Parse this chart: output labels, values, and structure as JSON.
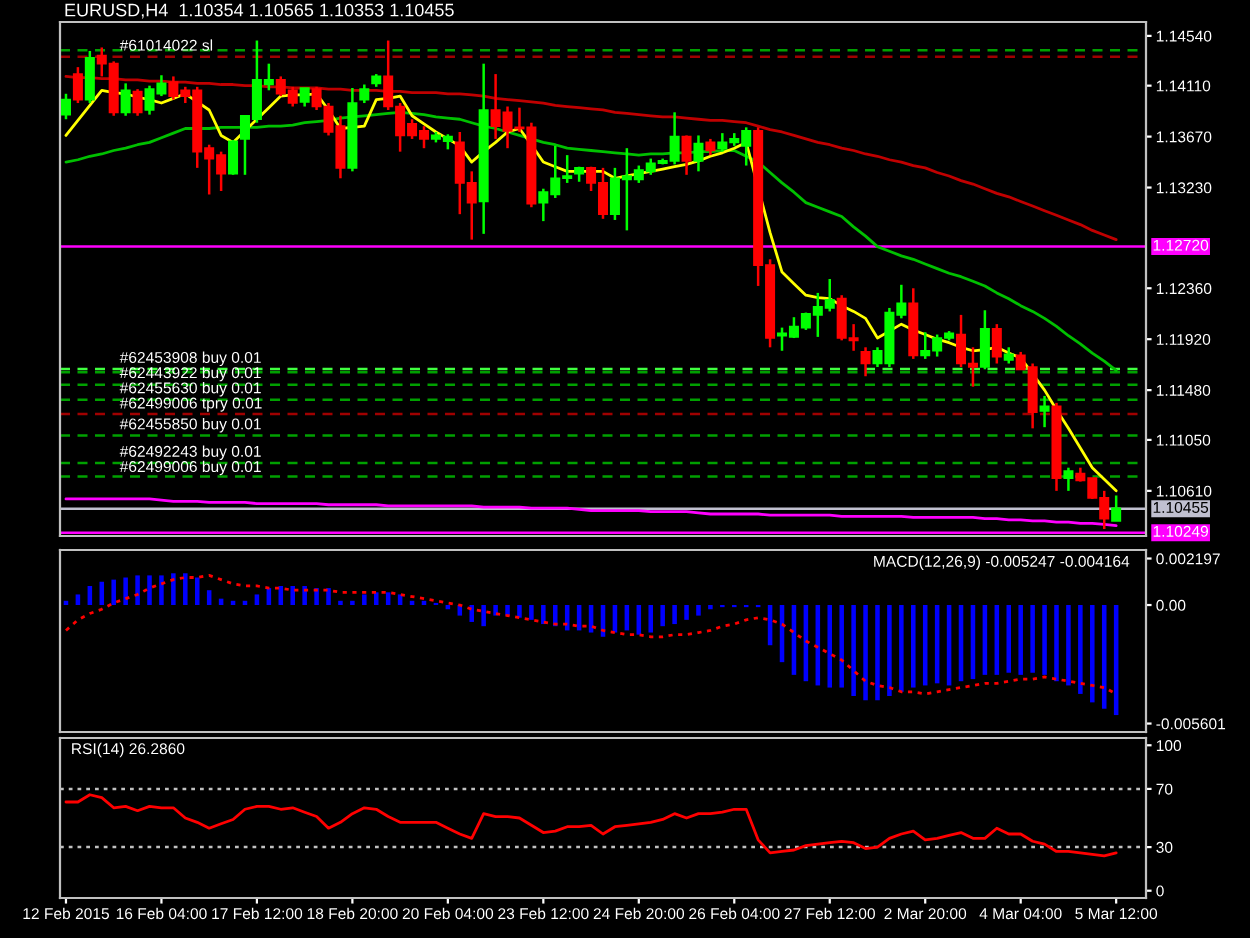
{
  "chart_data": [
    {
      "type": "candlestick",
      "title": "EURUSD,H4  1.10354 1.10565 1.10353 1.10455",
      "categories": [
        null,
        null,
        null,
        null,
        null,
        null,
        null,
        null,
        null,
        null,
        null,
        null,
        null,
        null,
        null,
        null,
        null,
        null,
        null,
        null,
        null,
        null,
        null,
        null,
        null,
        null,
        null,
        null,
        null,
        null,
        null,
        null,
        null,
        null,
        null,
        null,
        null,
        null,
        null,
        null,
        null,
        null,
        null,
        null,
        null,
        null,
        null,
        null,
        null,
        null,
        null,
        null,
        null,
        null,
        null,
        null,
        null,
        null,
        null,
        null,
        null,
        null,
        null,
        null,
        null,
        null,
        null,
        null,
        null,
        null,
        null,
        null,
        null,
        null,
        null,
        null,
        null,
        null,
        null,
        null,
        null,
        null,
        null,
        null,
        null,
        null,
        null,
        null,
        null
      ],
      "ohlc": [
        [
          1.1386,
          1.1404,
          1.1382,
          1.1399
        ],
        [
          1.1421,
          1.1427,
          1.1396,
          1.1399
        ],
        [
          1.1399,
          1.1441,
          1.1396,
          1.1435
        ],
        [
          1.1437,
          1.1444,
          1.1419,
          1.143
        ],
        [
          1.143,
          1.1432,
          1.1385,
          1.1388
        ],
        [
          1.1388,
          1.1413,
          1.1385,
          1.1407
        ],
        [
          1.1406,
          1.1408,
          1.1385,
          1.1388
        ],
        [
          1.139,
          1.1411,
          1.1386,
          1.1408
        ],
        [
          1.1404,
          1.142,
          1.1402,
          1.1413
        ],
        [
          1.1414,
          1.1419,
          1.1399,
          1.1402
        ],
        [
          1.1407,
          1.141,
          1.1396,
          1.1402
        ],
        [
          1.1407,
          1.141,
          1.134,
          1.1354
        ],
        [
          1.1357,
          1.136,
          1.1317,
          1.1348
        ],
        [
          1.1351,
          1.1354,
          1.132,
          1.1335
        ],
        [
          1.1335,
          1.1364,
          1.1334,
          1.1363
        ],
        [
          1.1365,
          1.1385,
          1.1334,
          1.1385
        ],
        [
          1.1382,
          1.145,
          1.1379,
          1.1416
        ],
        [
          1.1412,
          1.143,
          1.1407,
          1.1416
        ],
        [
          1.1416,
          1.1419,
          1.1402,
          1.1404
        ],
        [
          1.1407,
          1.141,
          1.1393,
          1.1396
        ],
        [
          1.1397,
          1.1409,
          1.1393,
          1.1409
        ],
        [
          1.1408,
          1.141,
          1.139,
          1.1393
        ],
        [
          1.1393,
          1.1396,
          1.1368,
          1.1371
        ],
        [
          1.1376,
          1.1385,
          1.1331,
          1.134
        ],
        [
          1.134,
          1.1409,
          1.1337,
          1.1396
        ],
        [
          1.1399,
          1.1412,
          1.1396,
          1.1408
        ],
        [
          1.1413,
          1.1421,
          1.141,
          1.1419
        ],
        [
          1.1419,
          1.145,
          1.139,
          1.1393
        ],
        [
          1.1393,
          1.1396,
          1.1354,
          1.1368
        ],
        [
          1.1378,
          1.1382,
          1.1365,
          1.1368
        ],
        [
          1.1372,
          1.1376,
          1.1357,
          1.1365
        ],
        [
          1.1365,
          1.1371,
          1.1362,
          1.1368
        ],
        [
          1.1363,
          1.1369,
          1.1356,
          1.1367
        ],
        [
          1.1362,
          1.1371,
          1.13,
          1.1327
        ],
        [
          1.1327,
          1.1337,
          1.1278,
          1.131
        ],
        [
          1.1311,
          1.143,
          1.1283,
          1.139
        ],
        [
          1.139,
          1.1421,
          1.1365,
          1.1376
        ],
        [
          1.1388,
          1.1393,
          1.1357,
          1.1372
        ],
        [
          1.1375,
          1.1392,
          1.1371,
          1.1374
        ],
        [
          1.1375,
          1.1379,
          1.1306,
          1.1309
        ],
        [
          1.131,
          1.1322,
          1.1294,
          1.1319
        ],
        [
          1.1317,
          1.1359,
          1.1314,
          1.1331
        ],
        [
          1.1331,
          1.1351,
          1.1327,
          1.1333
        ],
        [
          1.1335,
          1.1341,
          1.1328,
          1.134
        ],
        [
          1.134,
          1.1341,
          1.132,
          1.1327
        ],
        [
          1.1327,
          1.134,
          1.1296,
          1.13
        ],
        [
          1.13,
          1.134,
          1.1295,
          1.1331
        ],
        [
          1.133,
          1.1357,
          1.1286,
          1.1333
        ],
        [
          1.133,
          1.1342,
          1.1327,
          1.1338
        ],
        [
          1.1337,
          1.1348,
          1.1334,
          1.1344
        ],
        [
          1.1344,
          1.1348,
          1.1343,
          1.1346
        ],
        [
          1.1346,
          1.1388,
          1.1343,
          1.1367
        ],
        [
          1.1367,
          1.1368,
          1.1334,
          1.1346
        ],
        [
          1.1346,
          1.1368,
          1.1337,
          1.1361
        ],
        [
          1.1362,
          1.1365,
          1.1351,
          1.1355
        ],
        [
          1.1357,
          1.137,
          1.1354,
          1.1362
        ],
        [
          1.1362,
          1.137,
          1.1359,
          1.1365
        ],
        [
          1.1359,
          1.1375,
          1.1342,
          1.1372
        ],
        [
          1.1372,
          1.1375,
          1.1238,
          1.1256
        ],
        [
          1.1256,
          1.1261,
          1.1185,
          1.1193
        ],
        [
          1.1195,
          1.1202,
          1.1182,
          1.1197
        ],
        [
          1.1194,
          1.1211,
          1.1193,
          1.1203
        ],
        [
          1.1202,
          1.1215,
          1.12,
          1.1214
        ],
        [
          1.1213,
          1.1232,
          1.1194,
          1.122
        ],
        [
          1.1219,
          1.1244,
          1.1216,
          1.1226
        ],
        [
          1.1227,
          1.123,
          1.1191,
          1.1193
        ],
        [
          1.1193,
          1.1205,
          1.1182,
          1.1191
        ],
        [
          1.1181,
          1.1185,
          1.116,
          1.1171
        ],
        [
          1.1171,
          1.1185,
          1.1168,
          1.1182
        ],
        [
          1.1171,
          1.1219,
          1.1168,
          1.1215
        ],
        [
          1.1213,
          1.1239,
          1.121,
          1.1223
        ],
        [
          1.1223,
          1.1236,
          1.1175,
          1.1178
        ],
        [
          1.1178,
          1.1198,
          1.1175,
          1.1182
        ],
        [
          1.1182,
          1.1196,
          1.1177,
          1.1193
        ],
        [
          1.1193,
          1.1199,
          1.1191,
          1.1197
        ],
        [
          1.1196,
          1.1213,
          1.1168,
          1.1171
        ],
        [
          1.1171,
          1.1185,
          1.1151,
          1.1168
        ],
        [
          1.1168,
          1.1217,
          1.1166,
          1.1201
        ],
        [
          1.1201,
          1.1205,
          1.1171,
          1.1177
        ],
        [
          1.1174,
          1.1185,
          1.1171,
          1.1179
        ],
        [
          1.1178,
          1.1181,
          1.1166,
          1.1166
        ],
        [
          1.1168,
          1.1171,
          1.1115,
          1.1129
        ],
        [
          1.113,
          1.1143,
          1.1116,
          1.1134
        ],
        [
          1.1134,
          1.1137,
          1.1061,
          1.1072
        ],
        [
          1.1072,
          1.1081,
          1.1061,
          1.1078
        ],
        [
          1.1076,
          1.1081,
          1.1069,
          1.107
        ],
        [
          1.1072,
          1.1072,
          1.1054,
          1.1055
        ],
        [
          1.1055,
          1.1061,
          1.1028,
          1.1037
        ],
        [
          1.1035,
          1.1057,
          1.1035,
          1.1046
        ]
      ],
      "colors": [
        "#00ff00",
        "#ff0000",
        "#00ff00",
        "#ff0000",
        "#ff0000",
        "#00ff00",
        "#ff0000",
        "#00ff00",
        "#00ff00",
        "#ff0000",
        "#ff0000",
        "#ff0000",
        "#ff0000",
        "#ff0000",
        "#00ff00",
        "#00ff00",
        "#00ff00",
        "#00ff00",
        "#ff0000",
        "#ff0000",
        "#00ff00",
        "#ff0000",
        "#ff0000",
        "#ff0000",
        "#00ff00",
        "#00ff00",
        "#00ff00",
        "#ff0000",
        "#ff0000",
        "#ff0000",
        "#ff0000",
        "#00ff00",
        "#00ff00",
        "#ff0000",
        "#ff0000",
        "#00ff00",
        "#ff0000",
        "#ff0000",
        "#ff0000",
        "#ff0000",
        "#00ff00",
        "#00ff00",
        "#00ff00",
        "#00ff00",
        "#ff0000",
        "#ff0000",
        "#00ff00",
        "#00ff00",
        "#00ff00",
        "#00ff00",
        "#00ff00",
        "#00ff00",
        "#ff0000",
        "#00ff00",
        "#ff0000",
        "#00ff00",
        "#00ff00",
        "#00ff00",
        "#ff0000",
        "#ff0000",
        "#00ff00",
        "#00ff00",
        "#00ff00",
        "#00ff00",
        "#00ff00",
        "#ff0000",
        "#ff0000",
        "#ff0000",
        "#00ff00",
        "#00ff00",
        "#00ff00",
        "#ff0000",
        "#00ff00",
        "#00ff00",
        "#00ff00",
        "#ff0000",
        "#ff0000",
        "#00ff00",
        "#ff0000",
        "#00ff00",
        "#ff0000",
        "#ff0000",
        "#00ff00",
        "#ff0000",
        "#00ff00",
        "#ff0000",
        "#ff0000",
        "#ff0000",
        "#00ff00"
      ],
      "series": [
        {
          "type": "line",
          "color": "#c00000",
          "values": [
            1.1419,
            1.1418,
            1.1418,
            1.1417,
            1.1417,
            1.1416,
            1.1416,
            1.1415,
            1.1415,
            1.1414,
            1.1414,
            1.1413,
            1.1413,
            1.1412,
            1.1412,
            1.1411,
            1.1411,
            1.141,
            1.141,
            1.1409,
            1.1409,
            1.1409,
            1.1408,
            1.1408,
            1.1407,
            1.1407,
            1.1407,
            1.1406,
            1.1406,
            1.1405,
            1.1405,
            1.1405,
            1.1404,
            1.1404,
            1.1403,
            1.1402,
            1.14,
            1.1399,
            1.1398,
            1.1397,
            1.1396,
            1.1394,
            1.1393,
            1.1392,
            1.1391,
            1.139,
            1.1388,
            1.1387,
            1.1386,
            1.1385,
            1.1384,
            1.1384,
            1.1383,
            1.1382,
            1.1381,
            1.1381,
            1.138,
            1.1379,
            1.1376,
            1.1373,
            1.1371,
            1.1368,
            1.1365,
            1.1362,
            1.136,
            1.1357,
            1.1355,
            1.1352,
            1.135,
            1.1347,
            1.1345,
            1.1342,
            1.134,
            1.1336,
            1.1333,
            1.1329,
            1.1326,
            1.1322,
            1.1318,
            1.1315,
            1.1311,
            1.1307,
            1.1303,
            1.1299,
            1.1295,
            1.1291,
            1.1286,
            1.1282,
            1.1278
          ]
        },
        {
          "type": "line",
          "color": "#00c000",
          "values": [
            1.1345,
            1.1347,
            1.135,
            1.1352,
            1.1355,
            1.1357,
            1.136,
            1.1362,
            1.1366,
            1.137,
            1.1374,
            1.1374,
            1.1374,
            1.1375,
            1.1375,
            1.1375,
            1.1375,
            1.1376,
            1.1376,
            1.1377,
            1.1379,
            1.138,
            1.1381,
            1.1383,
            1.1384,
            1.1385,
            1.1386,
            1.1387,
            1.1388,
            1.1387,
            1.1386,
            1.1384,
            1.1383,
            1.1382,
            1.1379,
            1.1376,
            1.1374,
            1.1371,
            1.1368,
            1.1365,
            1.1362,
            1.136,
            1.1357,
            1.1356,
            1.1355,
            1.1354,
            1.1353,
            1.1352,
            1.1351,
            1.1352,
            1.1352,
            1.1353,
            1.1353,
            1.1354,
            1.1354,
            1.1355,
            1.1355,
            1.135,
            1.1345,
            1.1336,
            1.1327,
            1.1319,
            1.131,
            1.1306,
            1.1302,
            1.1298,
            1.1289,
            1.1281,
            1.1272,
            1.1268,
            1.1264,
            1.1261,
            1.1257,
            1.1253,
            1.1249,
            1.1246,
            1.1242,
            1.1238,
            1.1232,
            1.1227,
            1.1221,
            1.1216,
            1.121,
            1.1203,
            1.1195,
            1.1188,
            1.118,
            1.1173,
            1.1165
          ]
        },
        {
          "type": "line",
          "color": "#ffff00",
          "values": [
            1.1368,
            1.1381,
            1.1394,
            1.1407,
            1.1405,
            1.1404,
            1.1401,
            1.1399,
            1.1396,
            1.14,
            1.1404,
            1.1397,
            1.139,
            1.1368,
            1.1362,
            1.1372,
            1.1382,
            1.1392,
            1.1402,
            1.1403,
            1.1403,
            1.1404,
            1.139,
            1.1374,
            1.1375,
            1.1376,
            1.1399,
            1.14,
            1.1402,
            1.1385,
            1.1378,
            1.1371,
            1.1365,
            1.1359,
            1.1345,
            1.1354,
            1.1362,
            1.1371,
            1.1374,
            1.136,
            1.1345,
            1.1341,
            1.1337,
            1.1337,
            1.1337,
            1.1337,
            1.1331,
            1.1333,
            1.1335,
            1.1337,
            1.1339,
            1.1341,
            1.1343,
            1.1346,
            1.135,
            1.1353,
            1.1357,
            1.1362,
            null,
            1.1284,
            1.125,
            1.124,
            1.123,
            1.1228,
            1.1227,
            1.1221,
            1.1216,
            1.121,
            1.1193,
            1.1199,
            1.1205,
            1.12,
            1.1196,
            1.1192,
            1.1189,
            1.1185,
            1.1182,
            1.1183,
            1.1185,
            1.118,
            1.1176,
            1.1162,
            1.1148,
            1.1131,
            1.1115,
            1.1098,
            1.1081,
            1.1071,
            1.1061
          ]
        },
        {
          "type": "line",
          "color": "#ff00ff",
          "values": [
            1.1054,
            1.1054,
            1.1054,
            1.1054,
            1.1054,
            1.1054,
            1.1054,
            1.1054,
            1.1053,
            1.1052,
            1.1052,
            1.1052,
            1.1051,
            1.1051,
            1.1051,
            1.1051,
            1.105,
            1.105,
            1.105,
            1.105,
            1.105,
            1.105,
            1.1049,
            1.1049,
            1.1049,
            1.1049,
            1.1049,
            1.1048,
            1.1048,
            1.1048,
            1.1048,
            1.1048,
            1.1048,
            1.1048,
            1.1048,
            1.1047,
            1.1047,
            1.1047,
            1.1047,
            1.1046,
            1.1046,
            1.1046,
            1.1046,
            1.1045,
            1.1044,
            1.1044,
            1.1044,
            1.1044,
            1.1044,
            1.1043,
            1.1043,
            1.1043,
            1.1043,
            1.1042,
            1.1041,
            1.1041,
            1.1041,
            1.1041,
            1.1041,
            1.104,
            1.104,
            1.104,
            1.104,
            1.104,
            1.104,
            1.1039,
            1.1039,
            1.1039,
            1.1039,
            1.1039,
            1.1039,
            1.1038,
            1.1038,
            1.1038,
            1.1038,
            1.1038,
            1.1038,
            1.1037,
            1.1037,
            1.1036,
            1.1036,
            1.1035,
            1.1035,
            1.1034,
            1.1034,
            1.1033,
            1.1033,
            1.1032,
            1.1031
          ]
        }
      ],
      "ref_lines": [
        {
          "axis": "y",
          "value": 1.14417,
          "color": "#00a000",
          "line_style": "dashed"
        },
        {
          "axis": "y",
          "value": 1.14359,
          "color": "#a00000",
          "line_style": "dashed",
          "label": "#61014022 sl"
        },
        {
          "axis": "y",
          "value": 1.11662,
          "color": "#40ff40",
          "line_style": "dashed",
          "label": "#62453908 buy 0.01"
        },
        {
          "axis": "y",
          "value": 1.11635,
          "color": "#00a000",
          "line_style": "dashed",
          "label": "#62443922 buy 0.01"
        },
        {
          "axis": "y",
          "value": 1.11527,
          "color": "#00a000",
          "line_style": "dashed",
          "label": "#62455630 buy 0.01"
        },
        {
          "axis": "y",
          "value": 1.11398,
          "color": "#00a000",
          "line_style": "dashed"
        },
        {
          "axis": "y",
          "value": 1.11273,
          "color": "#a00000",
          "line_style": "dashed",
          "label": "#62499006 tpry 0.01"
        },
        {
          "axis": "y",
          "value": 1.11088,
          "color": "#00a000",
          "line_style": "dashed",
          "label": "#62455850 buy 0.01"
        },
        {
          "axis": "y",
          "value": 1.10851,
          "color": "#00a000",
          "line_style": "dashed",
          "label": "#62492243 buy 0.01"
        },
        {
          "axis": "y",
          "value": 1.10733,
          "color": "#00a000",
          "line_style": "dashed",
          "label": "#62499006 buy 0.01"
        },
        {
          "axis": "y",
          "value": 1.1272,
          "color": "#ff00ff",
          "line_style": "solid",
          "label": "1.12720"
        },
        {
          "axis": "y",
          "value": 1.10455,
          "color": "#c0c0d0",
          "line_style": "solid",
          "label": "1.10455"
        },
        {
          "axis": "y",
          "value": 1.10249,
          "color": "#ff00ff",
          "line_style": "solid",
          "label": "1.10249"
        }
      ],
      "ylim": [
        1.1022,
        1.1466
      ],
      "yticks": [
        {
          "value": 1.1454,
          "label": "1.14540"
        },
        {
          "value": 1.1411,
          "label": "1.14110"
        },
        {
          "value": 1.1367,
          "label": "1.13670"
        },
        {
          "value": 1.1323,
          "label": "1.13230"
        },
        {
          "value": 1.1236,
          "label": "1.12360"
        },
        {
          "value": 1.1192,
          "label": "1.11920"
        },
        {
          "value": 1.1148,
          "label": "1.11480"
        },
        {
          "value": 1.1105,
          "label": "1.11050"
        },
        {
          "value": 1.1061,
          "label": "1.10610"
        }
      ],
      "tick_labels": "y"
    },
    {
      "type": "bar",
      "annotations": [
        "MACD(12,26,9) -0.005247 -0.004164"
      ],
      "categories": [
        null,
        null,
        null,
        null,
        null,
        null,
        null,
        null,
        null,
        null,
        null,
        null,
        null,
        null,
        null,
        null,
        null,
        null,
        null,
        null,
        null,
        null,
        null,
        null,
        null,
        null,
        null,
        null,
        null,
        null,
        null,
        null,
        null,
        null,
        null,
        null,
        null,
        null,
        null,
        null,
        null,
        null,
        null,
        null,
        null,
        null,
        null,
        null,
        null,
        null,
        null,
        null,
        null,
        null,
        null,
        null,
        null,
        null,
        null,
        null,
        null,
        null,
        null,
        null,
        null,
        null,
        null,
        null,
        null,
        null,
        null,
        null,
        null,
        null,
        null,
        null,
        null,
        null,
        null,
        null,
        null,
        null,
        null,
        null,
        null,
        null,
        null,
        null,
        null
      ],
      "series": [
        {
          "type": "bar",
          "color": "#0000ff",
          "values": [
            0.0002,
            0.0005,
            0.0009,
            0.0011,
            0.0012,
            0.0013,
            0.0014,
            0.0014,
            0.0014,
            0.0015,
            0.0015,
            0.0013,
            0.0007,
            0.0003,
            0.0002,
            0.0002,
            0.0005,
            0.0008,
            0.0009,
            0.0009,
            0.0009,
            0.0008,
            0.0008,
            0.0002,
            0.0002,
            0.0005,
            0.0006,
            0.0006,
            0.0005,
            0.0002,
            0.0002,
            0.0001,
            -0.0002,
            -0.0005,
            -0.0008,
            -0.001,
            -0.0005,
            -0.0005,
            -0.0006,
            -0.0007,
            -0.0009,
            -0.001,
            -0.0012,
            -0.0012,
            -0.0013,
            -0.0015,
            -0.0013,
            -0.0012,
            -0.0014,
            -0.0013,
            -0.001,
            -0.0009,
            -0.0007,
            -0.0005,
            -0.0002,
            -0.0001,
            -0.0001,
            -0.0001,
            -0.0001,
            -0.0019,
            -0.0027,
            -0.0033,
            -0.0036,
            -0.0038,
            -0.0039,
            -0.0039,
            -0.0043,
            -0.0045,
            -0.0045,
            -0.0043,
            -0.0041,
            -0.0039,
            -0.0038,
            -0.0037,
            -0.0038,
            -0.0036,
            -0.0035,
            -0.0033,
            -0.0033,
            -0.0032,
            -0.0033,
            -0.0032,
            -0.0033,
            -0.0036,
            -0.0038,
            -0.0042,
            -0.0046,
            -0.0049,
            -0.0052
          ]
        },
        {
          "type": "line",
          "color": "#ff0000",
          "line_style": "dotted",
          "values": [
            -0.0012,
            -0.0007,
            -0.0004,
            -0.0002,
            0.0001,
            0.0003,
            0.0005,
            0.0008,
            0.001,
            0.0012,
            0.0013,
            0.0013,
            0.0014,
            0.0012,
            0.001,
            0.0009,
            0.0009,
            0.0008,
            0.0008,
            0.0007,
            0.0007,
            0.0007,
            0.0007,
            0.0006,
            0.0006,
            0.0006,
            0.0006,
            0.0006,
            0.0005,
            0.0004,
            0.0003,
            0.0002,
            0.0001,
            0.0,
            -0.0002,
            -0.0003,
            -0.0004,
            -0.0005,
            -0.0006,
            -0.0007,
            -0.0008,
            -0.0009,
            -0.0009,
            -0.001,
            -0.001,
            -0.0012,
            -0.0013,
            -0.0014,
            -0.0014,
            -0.0015,
            -0.0015,
            -0.0014,
            -0.0014,
            -0.0013,
            -0.0012,
            -0.001,
            -0.0009,
            -0.0007,
            -0.0006,
            -0.0007,
            -0.0009,
            -0.0013,
            -0.0017,
            -0.002,
            -0.0023,
            -0.0026,
            -0.0031,
            -0.0036,
            -0.0038,
            -0.0039,
            -0.0041,
            -0.0041,
            -0.0042,
            -0.0041,
            -0.004,
            -0.0039,
            -0.0038,
            -0.0037,
            -0.0037,
            -0.0036,
            -0.0035,
            -0.0035,
            -0.0034,
            -0.0035,
            -0.0036,
            -0.0037,
            -0.0038,
            -0.0039,
            -0.0042
          ]
        }
      ],
      "ylim": [
        -0.006,
        0.0026
      ],
      "yticks": [
        0.002197,
        {
          "value": 0,
          "label": "0.00"
        },
        -0.005601
      ],
      "tick_labels": "y"
    },
    {
      "type": "line",
      "annotations": [
        "RSI(14) 26.2860"
      ],
      "categories": [
        "12 Feb 2015",
        null,
        null,
        null,
        null,
        null,
        null,
        null,
        "16 Feb 04:00",
        null,
        null,
        null,
        null,
        null,
        null,
        null,
        "17 Feb 12:00",
        null,
        null,
        null,
        null,
        null,
        null,
        null,
        "18 Feb 20:00",
        null,
        null,
        null,
        null,
        null,
        null,
        null,
        "20 Feb 04:00",
        null,
        null,
        null,
        null,
        null,
        null,
        null,
        "23 Feb 12:00",
        null,
        null,
        null,
        null,
        null,
        null,
        null,
        "24 Feb 20:00",
        null,
        null,
        null,
        null,
        null,
        null,
        null,
        "26 Feb 04:00",
        null,
        null,
        null,
        null,
        null,
        null,
        null,
        "27 Feb 12:00",
        null,
        null,
        null,
        null,
        null,
        null,
        null,
        "2 Mar 20:00",
        null,
        null,
        null,
        null,
        null,
        null,
        null,
        "4 Mar 04:00",
        null,
        null,
        null,
        null,
        null,
        null,
        null,
        "5 Mar 12:00"
      ],
      "series": [
        {
          "type": "line",
          "color": "#ff0000",
          "values": [
            61,
            61,
            66,
            64,
            57,
            58,
            55,
            58,
            57,
            57,
            50,
            47,
            43,
            46,
            49,
            56,
            58,
            58,
            56,
            57,
            54,
            51,
            43,
            47,
            53,
            57,
            56,
            51,
            47,
            47,
            47,
            47,
            43,
            39,
            36,
            53,
            51,
            51,
            50,
            45,
            40,
            41,
            44,
            44,
            45,
            39,
            44,
            45,
            46,
            47,
            49,
            53,
            50,
            53,
            53,
            54,
            56,
            56,
            35,
            26,
            27,
            28,
            31,
            32,
            33,
            34,
            33,
            29,
            30,
            36,
            39,
            41,
            35,
            36,
            38,
            40,
            36,
            36,
            43,
            39,
            39,
            34,
            32,
            27,
            27,
            26,
            25,
            24,
            26
          ]
        }
      ],
      "ref_lines": [
        {
          "axis": "y",
          "value": 70,
          "color": "#c0c0c0",
          "line_style": "dotted"
        },
        {
          "axis": "y",
          "value": 30,
          "color": "#c0c0c0",
          "line_style": "dotted"
        }
      ],
      "ylim": [
        -5,
        105
      ],
      "yticks": [
        100,
        70,
        30,
        0
      ]
    }
  ]
}
